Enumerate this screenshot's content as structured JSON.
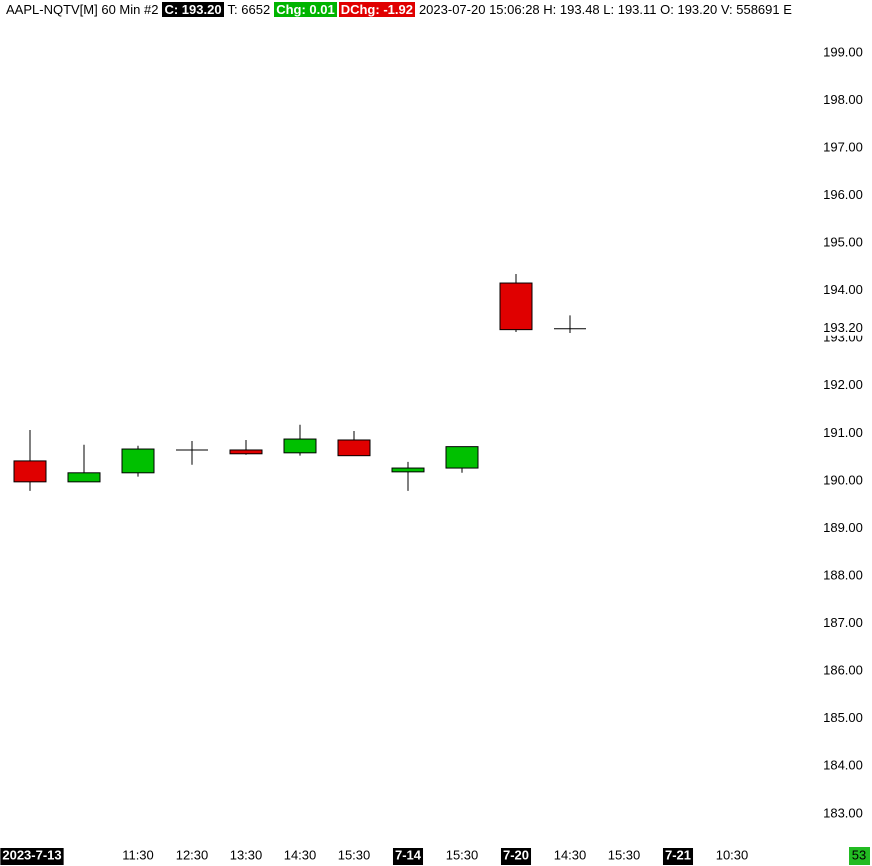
{
  "chart_data": {
    "type": "candlestick",
    "header": [
      {
        "text": "AAPL-NQTV[M]  60 Min  #2"
      },
      {
        "text": "C: 193.20",
        "bg": "#000000",
        "fg": "#ffffff"
      },
      {
        "text": "T: 6652"
      },
      {
        "text": "Chg: 0.01",
        "bg": "#00b400",
        "fg": "#ffffff"
      },
      {
        "text": "DChg: -1.92",
        "bg": "#e00000",
        "fg": "#ffffff"
      },
      {
        "text": "2023-07-20 15:06:28 H: 193.48 L: 193.11 O: 193.20 V: 558691 E"
      }
    ],
    "categories": [
      "2023-7-13",
      null,
      "11:30",
      "12:30",
      "13:30",
      "14:30",
      "15:30",
      "7-14",
      "15:30",
      "7-20",
      "14:30",
      "15:30",
      "7-21",
      "10:30"
    ],
    "highlighted_categories": [
      0,
      7,
      9,
      12
    ],
    "open": [
      190.42,
      189.98,
      190.17,
      190.65,
      190.65,
      190.59,
      190.86,
      190.19,
      190.27,
      194.16,
      193.2,
      null,
      null,
      null
    ],
    "high": [
      191.07,
      190.76,
      190.74,
      190.84,
      190.86,
      191.18,
      191.05,
      190.4,
      190.72,
      194.35,
      193.48,
      null,
      null,
      null
    ],
    "low": [
      189.79,
      189.98,
      190.09,
      190.34,
      190.55,
      190.53,
      190.53,
      189.79,
      190.17,
      193.13,
      193.11,
      null,
      null,
      null
    ],
    "close": [
      189.98,
      190.17,
      190.67,
      190.65,
      190.57,
      190.88,
      190.53,
      190.27,
      190.72,
      193.18,
      193.2,
      null,
      null,
      null
    ],
    "up_color": "#00c000",
    "down_color": "#e00000",
    "flat_color": "#000000",
    "last_price": {
      "value": 193.2,
      "label": "193.20"
    },
    "ylim": [
      182.45,
      199.69
    ],
    "yticks": [
      {
        "value": 183,
        "label": "183.00"
      },
      {
        "value": 184,
        "label": "184.00"
      },
      {
        "value": 185,
        "label": "185.00"
      },
      {
        "value": 186,
        "label": "186.00"
      },
      {
        "value": 187,
        "label": "187.00"
      },
      {
        "value": 188,
        "label": "188.00"
      },
      {
        "value": 189,
        "label": "189.00"
      },
      {
        "value": 190,
        "label": "190.00"
      },
      {
        "value": 191,
        "label": "191.00"
      },
      {
        "value": 192,
        "label": "192.00"
      },
      {
        "value": 193,
        "label": "193.00"
      },
      {
        "value": 194,
        "label": "194.00"
      },
      {
        "value": 195,
        "label": "195.00"
      },
      {
        "value": 196,
        "label": "196.00"
      },
      {
        "value": 197,
        "label": "197.00"
      },
      {
        "value": 198,
        "label": "198.00"
      },
      {
        "value": 199,
        "label": "199.00"
      }
    ],
    "corner_badge": {
      "text": "53",
      "bg": "#22bb22"
    }
  }
}
